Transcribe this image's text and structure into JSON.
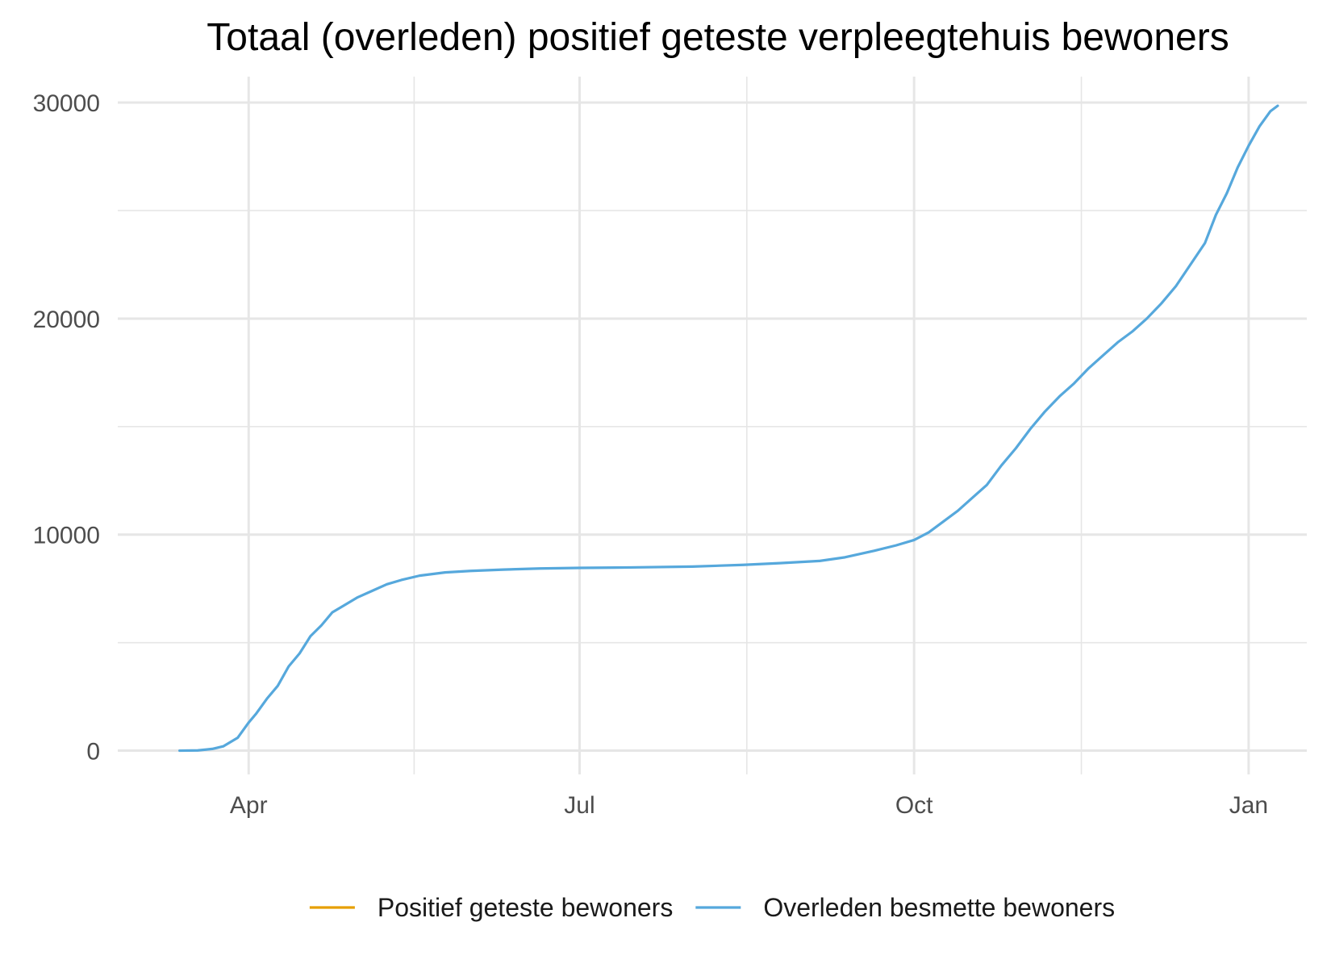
{
  "chart_data": {
    "type": "line",
    "title": "Totaal (overleden) positief geteste verpleegtehuis bewoners",
    "xlabel": "",
    "ylabel": "",
    "x_ticks": [
      {
        "label": "Apr",
        "date": "2020-04-01"
      },
      {
        "label": "Jul",
        "date": "2020-07-01"
      },
      {
        "label": "Oct",
        "date": "2020-10-01"
      },
      {
        "label": "Jan",
        "date": "2021-01-01"
      }
    ],
    "xlim": [
      "2020-02-25",
      "2021-01-17"
    ],
    "y_ticks": [
      0,
      10000,
      20000,
      30000
    ],
    "ylim": [
      -1100,
      31200
    ],
    "grid": true,
    "legend_position": "bottom",
    "colors": {
      "positief": "#E69F00",
      "overleden": "#56A8DC",
      "grid": "#e6e6e6"
    },
    "series": [
      {
        "name": "Positief geteste bewoners",
        "color": "#E69F00",
        "points": []
      },
      {
        "name": "Overleden besmette bewoners",
        "color": "#56A8DC",
        "points": [
          [
            "2020-03-13",
            0
          ],
          [
            "2020-03-18",
            10
          ],
          [
            "2020-03-22",
            80
          ],
          [
            "2020-03-25",
            200
          ],
          [
            "2020-03-29",
            600
          ],
          [
            "2020-04-01",
            1300
          ],
          [
            "2020-04-03",
            1700
          ],
          [
            "2020-04-06",
            2400
          ],
          [
            "2020-04-09",
            3000
          ],
          [
            "2020-04-12",
            3900
          ],
          [
            "2020-04-15",
            4500
          ],
          [
            "2020-04-18",
            5300
          ],
          [
            "2020-04-21",
            5800
          ],
          [
            "2020-04-24",
            6400
          ],
          [
            "2020-04-27",
            6700
          ],
          [
            "2020-05-01",
            7100
          ],
          [
            "2020-05-05",
            7400
          ],
          [
            "2020-05-09",
            7700
          ],
          [
            "2020-05-13",
            7900
          ],
          [
            "2020-05-18",
            8100
          ],
          [
            "2020-05-25",
            8250
          ],
          [
            "2020-06-01",
            8320
          ],
          [
            "2020-06-10",
            8380
          ],
          [
            "2020-06-20",
            8430
          ],
          [
            "2020-07-01",
            8460
          ],
          [
            "2020-07-15",
            8480
          ],
          [
            "2020-08-01",
            8520
          ],
          [
            "2020-08-15",
            8600
          ],
          [
            "2020-08-25",
            8680
          ],
          [
            "2020-09-05",
            8780
          ],
          [
            "2020-09-12",
            8950
          ],
          [
            "2020-09-20",
            9250
          ],
          [
            "2020-09-26",
            9500
          ],
          [
            "2020-10-01",
            9750
          ],
          [
            "2020-10-05",
            10100
          ],
          [
            "2020-10-09",
            10600
          ],
          [
            "2020-10-13",
            11100
          ],
          [
            "2020-10-17",
            11700
          ],
          [
            "2020-10-21",
            12300
          ],
          [
            "2020-10-25",
            13200
          ],
          [
            "2020-10-29",
            14000
          ],
          [
            "2020-11-02",
            14900
          ],
          [
            "2020-11-06",
            15700
          ],
          [
            "2020-11-10",
            16400
          ],
          [
            "2020-11-14",
            17000
          ],
          [
            "2020-11-18",
            17700
          ],
          [
            "2020-11-22",
            18300
          ],
          [
            "2020-11-26",
            18900
          ],
          [
            "2020-11-30",
            19400
          ],
          [
            "2020-12-04",
            20000
          ],
          [
            "2020-12-08",
            20700
          ],
          [
            "2020-12-12",
            21500
          ],
          [
            "2020-12-16",
            22500
          ],
          [
            "2020-12-20",
            23500
          ],
          [
            "2020-12-23",
            24800
          ],
          [
            "2020-12-26",
            25800
          ],
          [
            "2020-12-29",
            27000
          ],
          [
            "2021-01-01",
            28000
          ],
          [
            "2021-01-04",
            28900
          ],
          [
            "2021-01-07",
            29600
          ],
          [
            "2021-01-09",
            29850
          ]
        ]
      }
    ]
  }
}
